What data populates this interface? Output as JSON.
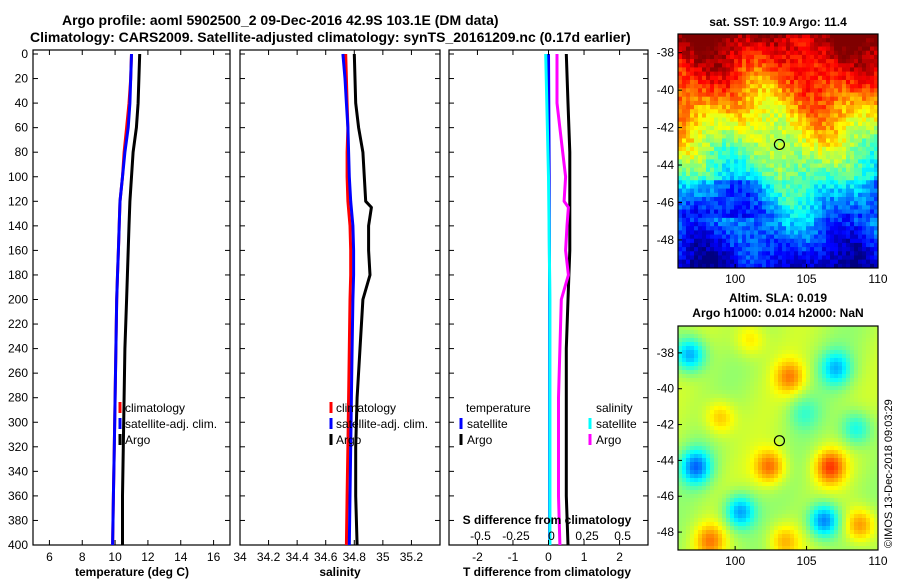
{
  "title_line1": "Argo profile: aoml 5902500_2 09-Dec-2016 42.9S 103.1E (DM data)",
  "title_line2": "Climatology: CARS2009. Satellite-adjusted climatology: synTS_20161209.nc (0.17d earlier)",
  "colors": {
    "climatology": "#ff0000",
    "satellite_adj": "#0000ff",
    "argo": "#000000",
    "s_satellite": "#00ffff",
    "s_argo": "#ff00ff"
  },
  "chart_data": [
    {
      "type": "line",
      "name": "temperature",
      "xlabel": "temperature (deg C)",
      "ylabel": "",
      "xlim": [
        5,
        17
      ],
      "ylim": [
        400,
        0
      ],
      "xticks": [
        6,
        8,
        10,
        12,
        14,
        16
      ],
      "yticks": [
        0,
        20,
        40,
        60,
        80,
        100,
        120,
        140,
        160,
        180,
        200,
        220,
        240,
        260,
        280,
        300,
        320,
        340,
        360,
        380,
        400
      ],
      "legend": [
        "climatology",
        "satellite-adj. clim.",
        "Argo"
      ],
      "series": [
        {
          "name": "climatology",
          "color": "#ff0000",
          "depth": [
            0,
            20,
            40,
            60,
            80,
            100,
            120,
            140,
            160,
            180,
            200,
            240,
            280,
            320,
            360,
            400
          ],
          "values": [
            11.0,
            10.95,
            10.85,
            10.7,
            10.55,
            10.45,
            10.3,
            10.25,
            10.2,
            10.15,
            10.1,
            10.05,
            10.0,
            9.95,
            9.9,
            9.85
          ]
        },
        {
          "name": "satellite-adj. clim.",
          "color": "#0000ff",
          "depth": [
            0,
            20,
            40,
            60,
            80,
            100,
            120,
            140,
            160,
            180,
            200,
            240,
            280,
            320,
            360,
            400
          ],
          "values": [
            11.0,
            10.95,
            10.9,
            10.8,
            10.6,
            10.45,
            10.3,
            10.25,
            10.2,
            10.15,
            10.1,
            10.05,
            10.0,
            9.95,
            9.9,
            9.85
          ]
        },
        {
          "name": "Argo",
          "color": "#000000",
          "depth": [
            0,
            20,
            40,
            60,
            80,
            100,
            120,
            140,
            160,
            180,
            200,
            240,
            280,
            320,
            360,
            400
          ],
          "values": [
            11.5,
            11.45,
            11.4,
            11.3,
            11.1,
            11.0,
            10.9,
            10.85,
            10.8,
            10.75,
            10.7,
            10.6,
            10.55,
            10.5,
            10.45,
            10.45
          ]
        }
      ]
    },
    {
      "type": "line",
      "name": "salinity",
      "xlabel": "salinity",
      "xlim": [
        34.0,
        35.4
      ],
      "ylim": [
        400,
        0
      ],
      "xticks": [
        34,
        34.2,
        34.4,
        34.6,
        34.8,
        35,
        35.2
      ],
      "legend": [
        "climatology",
        "satellite-adj. clim.",
        "Argo"
      ],
      "series": [
        {
          "name": "climatology",
          "color": "#ff0000",
          "depth": [
            0,
            20,
            40,
            60,
            80,
            100,
            120,
            140,
            160,
            180,
            200,
            240,
            280,
            320,
            360,
            400
          ],
          "values": [
            34.74,
            34.745,
            34.75,
            34.755,
            34.75,
            34.75,
            34.755,
            34.77,
            34.775,
            34.775,
            34.77,
            34.765,
            34.76,
            34.755,
            34.75,
            34.745
          ]
        },
        {
          "name": "satellite-adj. clim.",
          "color": "#0000ff",
          "depth": [
            0,
            20,
            40,
            60,
            80,
            100,
            120,
            140,
            160,
            180,
            200,
            240,
            280,
            320,
            360,
            400
          ],
          "values": [
            34.72,
            34.735,
            34.745,
            34.755,
            34.76,
            34.765,
            34.775,
            34.79,
            34.795,
            34.795,
            34.79,
            34.785,
            34.78,
            34.775,
            34.77,
            34.765
          ]
        },
        {
          "name": "Argo",
          "color": "#000000",
          "depth": [
            0,
            20,
            40,
            60,
            80,
            100,
            120,
            125,
            140,
            160,
            180,
            200,
            240,
            280,
            320,
            360,
            400
          ],
          "values": [
            34.8,
            34.805,
            34.81,
            34.83,
            34.86,
            34.87,
            34.88,
            34.92,
            34.9,
            34.9,
            34.91,
            34.86,
            34.84,
            34.82,
            34.81,
            34.81,
            34.82
          ]
        }
      ]
    },
    {
      "type": "line",
      "name": "difference from climatology",
      "xlabel": "T difference from climatology",
      "xlabel_top": "S difference from climatology",
      "xlim": [
        -2.8,
        2.8
      ],
      "ylim": [
        400,
        0
      ],
      "xticks": [
        -2,
        -1,
        0,
        1,
        2
      ],
      "xticks_top": [
        -0.5,
        -0.25,
        0,
        0.25,
        0.5
      ],
      "legend_temperature": [
        "temperature",
        "satellite",
        "Argo"
      ],
      "legend_salinity": [
        "salinity",
        "satellite",
        "Argo"
      ],
      "series": [
        {
          "name": "T satellite",
          "color": "#0000ff",
          "depth": [
            0,
            100,
            200,
            300,
            400
          ],
          "values": [
            0.0,
            0.02,
            0.03,
            0.03,
            0.03
          ]
        },
        {
          "name": "T Argo",
          "color": "#000000",
          "depth": [
            0,
            40,
            80,
            120,
            160,
            200,
            240,
            280,
            320,
            360,
            400
          ],
          "values": [
            0.5,
            0.55,
            0.6,
            0.6,
            0.6,
            0.55,
            0.5,
            0.5,
            0.5,
            0.5,
            0.55
          ]
        },
        {
          "name": "S satellite",
          "color": "#00ffff",
          "depth": [
            0,
            100,
            200,
            300,
            400
          ],
          "values": [
            -0.02,
            0.0,
            0.01,
            0.01,
            0.01
          ]
        },
        {
          "name": "S Argo",
          "color": "#ff00ff",
          "depth": [
            0,
            40,
            80,
            100,
            120,
            125,
            140,
            160,
            180,
            200,
            240,
            280,
            320,
            360,
            400
          ],
          "values": [
            0.06,
            0.06,
            0.1,
            0.12,
            0.11,
            0.14,
            0.13,
            0.12,
            0.14,
            0.09,
            0.08,
            0.07,
            0.07,
            0.07,
            0.08
          ]
        }
      ]
    },
    {
      "type": "heatmap",
      "name": "sst_map",
      "title": "sat. SST: 10.9 Argo: 11.4",
      "xlim": [
        96,
        110
      ],
      "ylim": [
        -49.5,
        -37
      ],
      "xticks": [
        100,
        105,
        110
      ],
      "yticks": [
        -38,
        -40,
        -42,
        -44,
        -46,
        -48
      ],
      "marker": {
        "lon": 103.1,
        "lat": -42.9
      }
    },
    {
      "type": "heatmap",
      "name": "sla_map",
      "title_line1": "Altim. SLA: 0.019",
      "title_line2": "Argo h1000: 0.014 h2000: NaN",
      "xlim": [
        96,
        110
      ],
      "ylim": [
        -49.0,
        -36.5
      ],
      "xticks": [
        100,
        105,
        110
      ],
      "yticks": [
        -38,
        -40,
        -42,
        -44,
        -46,
        -48
      ],
      "marker": {
        "lon": 103.1,
        "lat": -42.9
      }
    }
  ],
  "credit": "©IMOS 13-Dec-2018 09:03:29"
}
